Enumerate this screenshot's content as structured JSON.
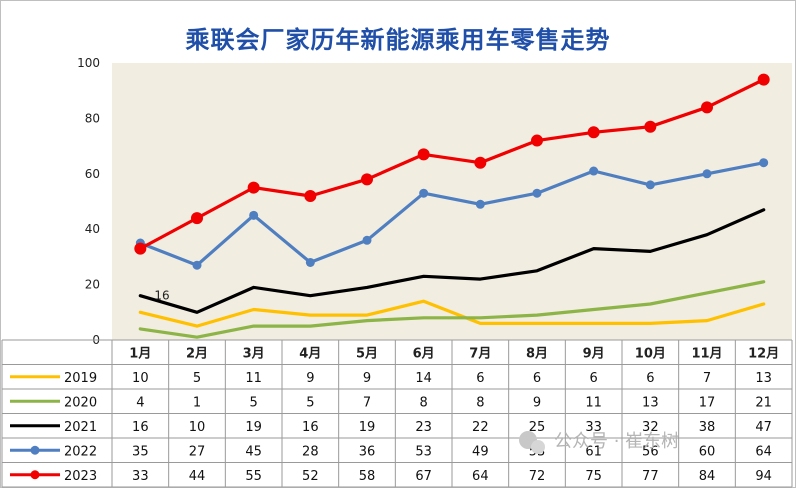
{
  "chart_data": {
    "type": "line",
    "title": "乘联会厂家历年新能源乘用车零售走势",
    "categories": [
      "1月",
      "2月",
      "3月",
      "4月",
      "5月",
      "6月",
      "7月",
      "8月",
      "9月",
      "10月",
      "11月",
      "12月"
    ],
    "ylim": [
      0,
      100
    ],
    "yticks": [
      "0",
      "20",
      "40",
      "60",
      "80",
      "100"
    ],
    "grid": false,
    "legend": "table-left",
    "series": [
      {
        "name": "2019",
        "color": "#ffc000",
        "marker": false,
        "values": [
          10,
          5,
          11,
          9,
          9,
          14,
          6,
          6,
          6,
          6,
          7,
          13
        ]
      },
      {
        "name": "2020",
        "color": "#8db446",
        "marker": false,
        "values": [
          4,
          1,
          5,
          5,
          7,
          8,
          8,
          9,
          11,
          13,
          17,
          21
        ]
      },
      {
        "name": "2021",
        "color": "#000000",
        "marker": false,
        "values": [
          16,
          10,
          19,
          16,
          19,
          23,
          22,
          25,
          33,
          32,
          38,
          47
        ]
      },
      {
        "name": "2022",
        "color": "#4f7fc0",
        "marker": true,
        "values": [
          35,
          27,
          45,
          28,
          36,
          53,
          49,
          53,
          61,
          56,
          60,
          64
        ]
      },
      {
        "name": "2023",
        "color": "#f00000",
        "marker": true,
        "values": [
          33,
          44,
          55,
          52,
          58,
          67,
          64,
          72,
          75,
          77,
          84,
          94
        ]
      }
    ],
    "annotation": {
      "text": "16",
      "series": "2021",
      "index": 0
    }
  },
  "watermark": {
    "text": "公众号 · 崔东树",
    "icon": "wechat-icon"
  },
  "colors": {
    "plot_bg": "#f1ede1",
    "title": "#1f4fa8"
  }
}
